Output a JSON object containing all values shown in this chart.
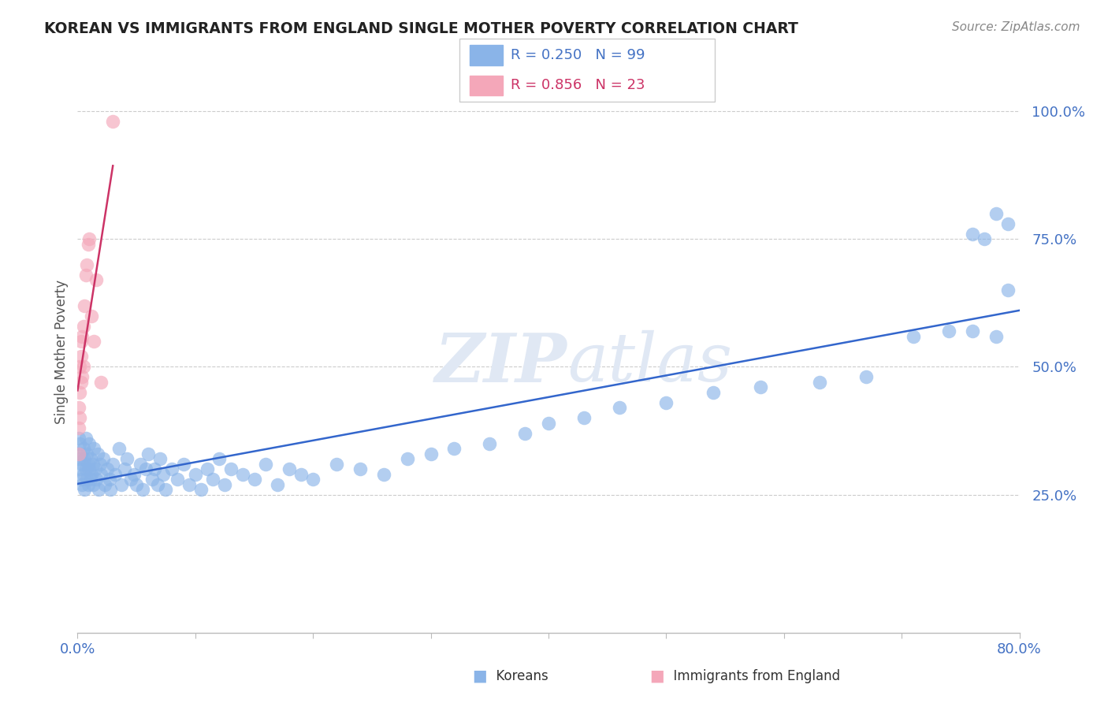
{
  "title": "KOREAN VS IMMIGRANTS FROM ENGLAND SINGLE MOTHER POVERTY CORRELATION CHART",
  "source": "Source: ZipAtlas.com",
  "ylabel": "Single Mother Poverty",
  "watermark": "ZIPatlas",
  "R_korean": 0.25,
  "N_korean": 99,
  "R_england": 0.856,
  "N_england": 23,
  "xlim": [
    0.0,
    0.8
  ],
  "ylim": [
    -0.02,
    1.08
  ],
  "blue_color": "#8ab4e8",
  "pink_color": "#f4a7b9",
  "blue_line_color": "#3366cc",
  "pink_line_color": "#cc3366",
  "bg_color": "#ffffff",
  "grid_color": "#cccccc",
  "korean_x": [
    0.001,
    0.001,
    0.002,
    0.002,
    0.003,
    0.003,
    0.004,
    0.004,
    0.005,
    0.005,
    0.006,
    0.006,
    0.007,
    0.007,
    0.008,
    0.008,
    0.009,
    0.009,
    0.01,
    0.01,
    0.011,
    0.011,
    0.012,
    0.013,
    0.013,
    0.014,
    0.015,
    0.016,
    0.017,
    0.018,
    0.019,
    0.02,
    0.022,
    0.023,
    0.025,
    0.027,
    0.028,
    0.03,
    0.032,
    0.035,
    0.037,
    0.04,
    0.042,
    0.045,
    0.048,
    0.05,
    0.053,
    0.055,
    0.058,
    0.06,
    0.063,
    0.065,
    0.068,
    0.07,
    0.073,
    0.075,
    0.08,
    0.085,
    0.09,
    0.095,
    0.1,
    0.105,
    0.11,
    0.115,
    0.12,
    0.125,
    0.13,
    0.14,
    0.15,
    0.16,
    0.17,
    0.18,
    0.19,
    0.2,
    0.22,
    0.24,
    0.26,
    0.28,
    0.3,
    0.32,
    0.35,
    0.38,
    0.4,
    0.43,
    0.46,
    0.5,
    0.54,
    0.58,
    0.63,
    0.67,
    0.71,
    0.74,
    0.76,
    0.78,
    0.79,
    0.79,
    0.78,
    0.77,
    0.76
  ],
  "korean_y": [
    0.32,
    0.36,
    0.3,
    0.35,
    0.28,
    0.33,
    0.31,
    0.27,
    0.34,
    0.29,
    0.32,
    0.26,
    0.3,
    0.36,
    0.28,
    0.33,
    0.31,
    0.27,
    0.35,
    0.3,
    0.28,
    0.32,
    0.29,
    0.31,
    0.27,
    0.34,
    0.3,
    0.28,
    0.33,
    0.26,
    0.31,
    0.29,
    0.32,
    0.27,
    0.3,
    0.28,
    0.26,
    0.31,
    0.29,
    0.34,
    0.27,
    0.3,
    0.32,
    0.28,
    0.29,
    0.27,
    0.31,
    0.26,
    0.3,
    0.33,
    0.28,
    0.3,
    0.27,
    0.32,
    0.29,
    0.26,
    0.3,
    0.28,
    0.31,
    0.27,
    0.29,
    0.26,
    0.3,
    0.28,
    0.32,
    0.27,
    0.3,
    0.29,
    0.28,
    0.31,
    0.27,
    0.3,
    0.29,
    0.28,
    0.31,
    0.3,
    0.29,
    0.32,
    0.33,
    0.34,
    0.35,
    0.37,
    0.39,
    0.4,
    0.42,
    0.43,
    0.45,
    0.46,
    0.47,
    0.48,
    0.56,
    0.57,
    0.57,
    0.56,
    0.78,
    0.65,
    0.8,
    0.75,
    0.76
  ],
  "england_x": [
    0.001,
    0.001,
    0.001,
    0.002,
    0.002,
    0.002,
    0.003,
    0.003,
    0.003,
    0.004,
    0.004,
    0.005,
    0.005,
    0.006,
    0.007,
    0.008,
    0.009,
    0.01,
    0.012,
    0.014,
    0.016,
    0.02,
    0.03
  ],
  "england_y": [
    0.33,
    0.38,
    0.42,
    0.4,
    0.45,
    0.5,
    0.47,
    0.52,
    0.55,
    0.48,
    0.56,
    0.5,
    0.58,
    0.62,
    0.68,
    0.7,
    0.74,
    0.75,
    0.6,
    0.55,
    0.67,
    0.47,
    0.98
  ]
}
